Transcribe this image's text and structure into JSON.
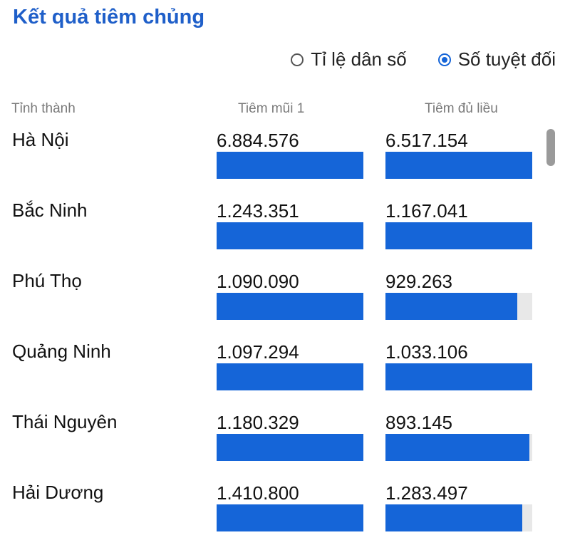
{
  "title": "Kết quả tiêm chủng",
  "mode_options": [
    {
      "label": "Tỉ lệ dân số",
      "selected": false
    },
    {
      "label": "Số tuyệt đối",
      "selected": true
    }
  ],
  "columns": {
    "province": "Tỉnh thành",
    "dose1": "Tiêm mũi 1",
    "full": "Tiêm đủ liều"
  },
  "colors": {
    "title": "#1f5fc9",
    "bar": "#1565d8",
    "track": "#e8e8e8"
  },
  "rows": [
    {
      "province": "Hà Nội",
      "dose1": "6.884.576",
      "dose1_fill": 1.0,
      "full": "6.517.154",
      "full_fill": 1.0
    },
    {
      "province": "Bắc Ninh",
      "dose1": "1.243.351",
      "dose1_fill": 1.0,
      "full": "1.167.041",
      "full_fill": 1.0
    },
    {
      "province": "Phú Thọ",
      "dose1": "1.090.090",
      "dose1_fill": 1.0,
      "full": "929.263",
      "full_fill": 0.9
    },
    {
      "province": "Quảng Ninh",
      "dose1": "1.097.294",
      "dose1_fill": 1.0,
      "full": "1.033.106",
      "full_fill": 1.0
    },
    {
      "province": "Thái Nguyên",
      "dose1": "1.180.329",
      "dose1_fill": 1.0,
      "full": "893.145",
      "full_fill": 0.98
    },
    {
      "province": "Hải Dương",
      "dose1": "1.410.800",
      "dose1_fill": 1.0,
      "full": "1.283.497",
      "full_fill": 0.93
    }
  ]
}
